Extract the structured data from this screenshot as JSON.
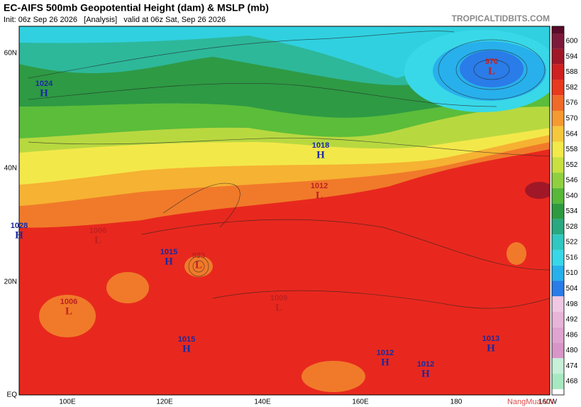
{
  "header": {
    "title": "EC-AIFS 500mb Geopotential Height (dam) & MSLP (mb)",
    "subtitle": "Init: 06z Sep 26 2026   [Analysis]   valid at 06z Sat, Sep 26 2026",
    "credit": "TROPICALTIDBITS.COM"
  },
  "colorbar": [
    {
      "label": 600,
      "color": "#7d1a3c"
    },
    {
      "label": 594,
      "color": "#a01828"
    },
    {
      "label": 588,
      "color": "#d02020"
    },
    {
      "label": 582,
      "color": "#e83a1e"
    },
    {
      "label": 576,
      "color": "#f06a28"
    },
    {
      "label": 570,
      "color": "#f59a30"
    },
    {
      "label": 564,
      "color": "#f6c83c"
    },
    {
      "label": 558,
      "color": "#f2ea4a"
    },
    {
      "label": 552,
      "color": "#c8e040"
    },
    {
      "label": 546,
      "color": "#90d040"
    },
    {
      "label": 540,
      "color": "#58b83a"
    },
    {
      "label": 534,
      "color": "#2e9a40"
    },
    {
      "label": 528,
      "color": "#2aa880"
    },
    {
      "label": 522,
      "color": "#30c8c0"
    },
    {
      "label": 516,
      "color": "#38d8e8"
    },
    {
      "label": 510,
      "color": "#28b0ec"
    },
    {
      "label": 504,
      "color": "#2a7ce8"
    },
    {
      "label": 498,
      "color": "#f0c8e4"
    },
    {
      "label": 492,
      "color": "#e8b4d8"
    },
    {
      "label": 486,
      "color": "#e0a4d0"
    },
    {
      "label": 480,
      "color": "#d896c8"
    },
    {
      "label": 474,
      "color": "#c8f0d8"
    },
    {
      "label": 468,
      "color": "#a8e8c0"
    }
  ],
  "latitudes": [
    "60N",
    "40N",
    "20N",
    "EQ"
  ],
  "longitudes": [
    "100E",
    "120E",
    "140E",
    "160E",
    "180",
    "160W"
  ],
  "centers": [
    {
      "letter": "H",
      "value": 1024
    },
    {
      "letter": "H",
      "value": 1018
    },
    {
      "letter": "L",
      "value": 1012
    },
    {
      "letter": "H",
      "value": 1028
    },
    {
      "letter": "L",
      "value": 1006
    },
    {
      "letter": "H",
      "value": 1015
    },
    {
      "letter": "L",
      "value": 993
    },
    {
      "letter": "L",
      "value": 1009
    },
    {
      "letter": "L",
      "value": 1006
    },
    {
      "letter": "H",
      "value": 1015
    },
    {
      "letter": "H",
      "value": 1012
    },
    {
      "letter": "H",
      "value": 1012
    },
    {
      "letter": "H",
      "value": 1013
    },
    {
      "letter": "L",
      "value": 970
    }
  ],
  "watermark": "NangMua.VN"
}
